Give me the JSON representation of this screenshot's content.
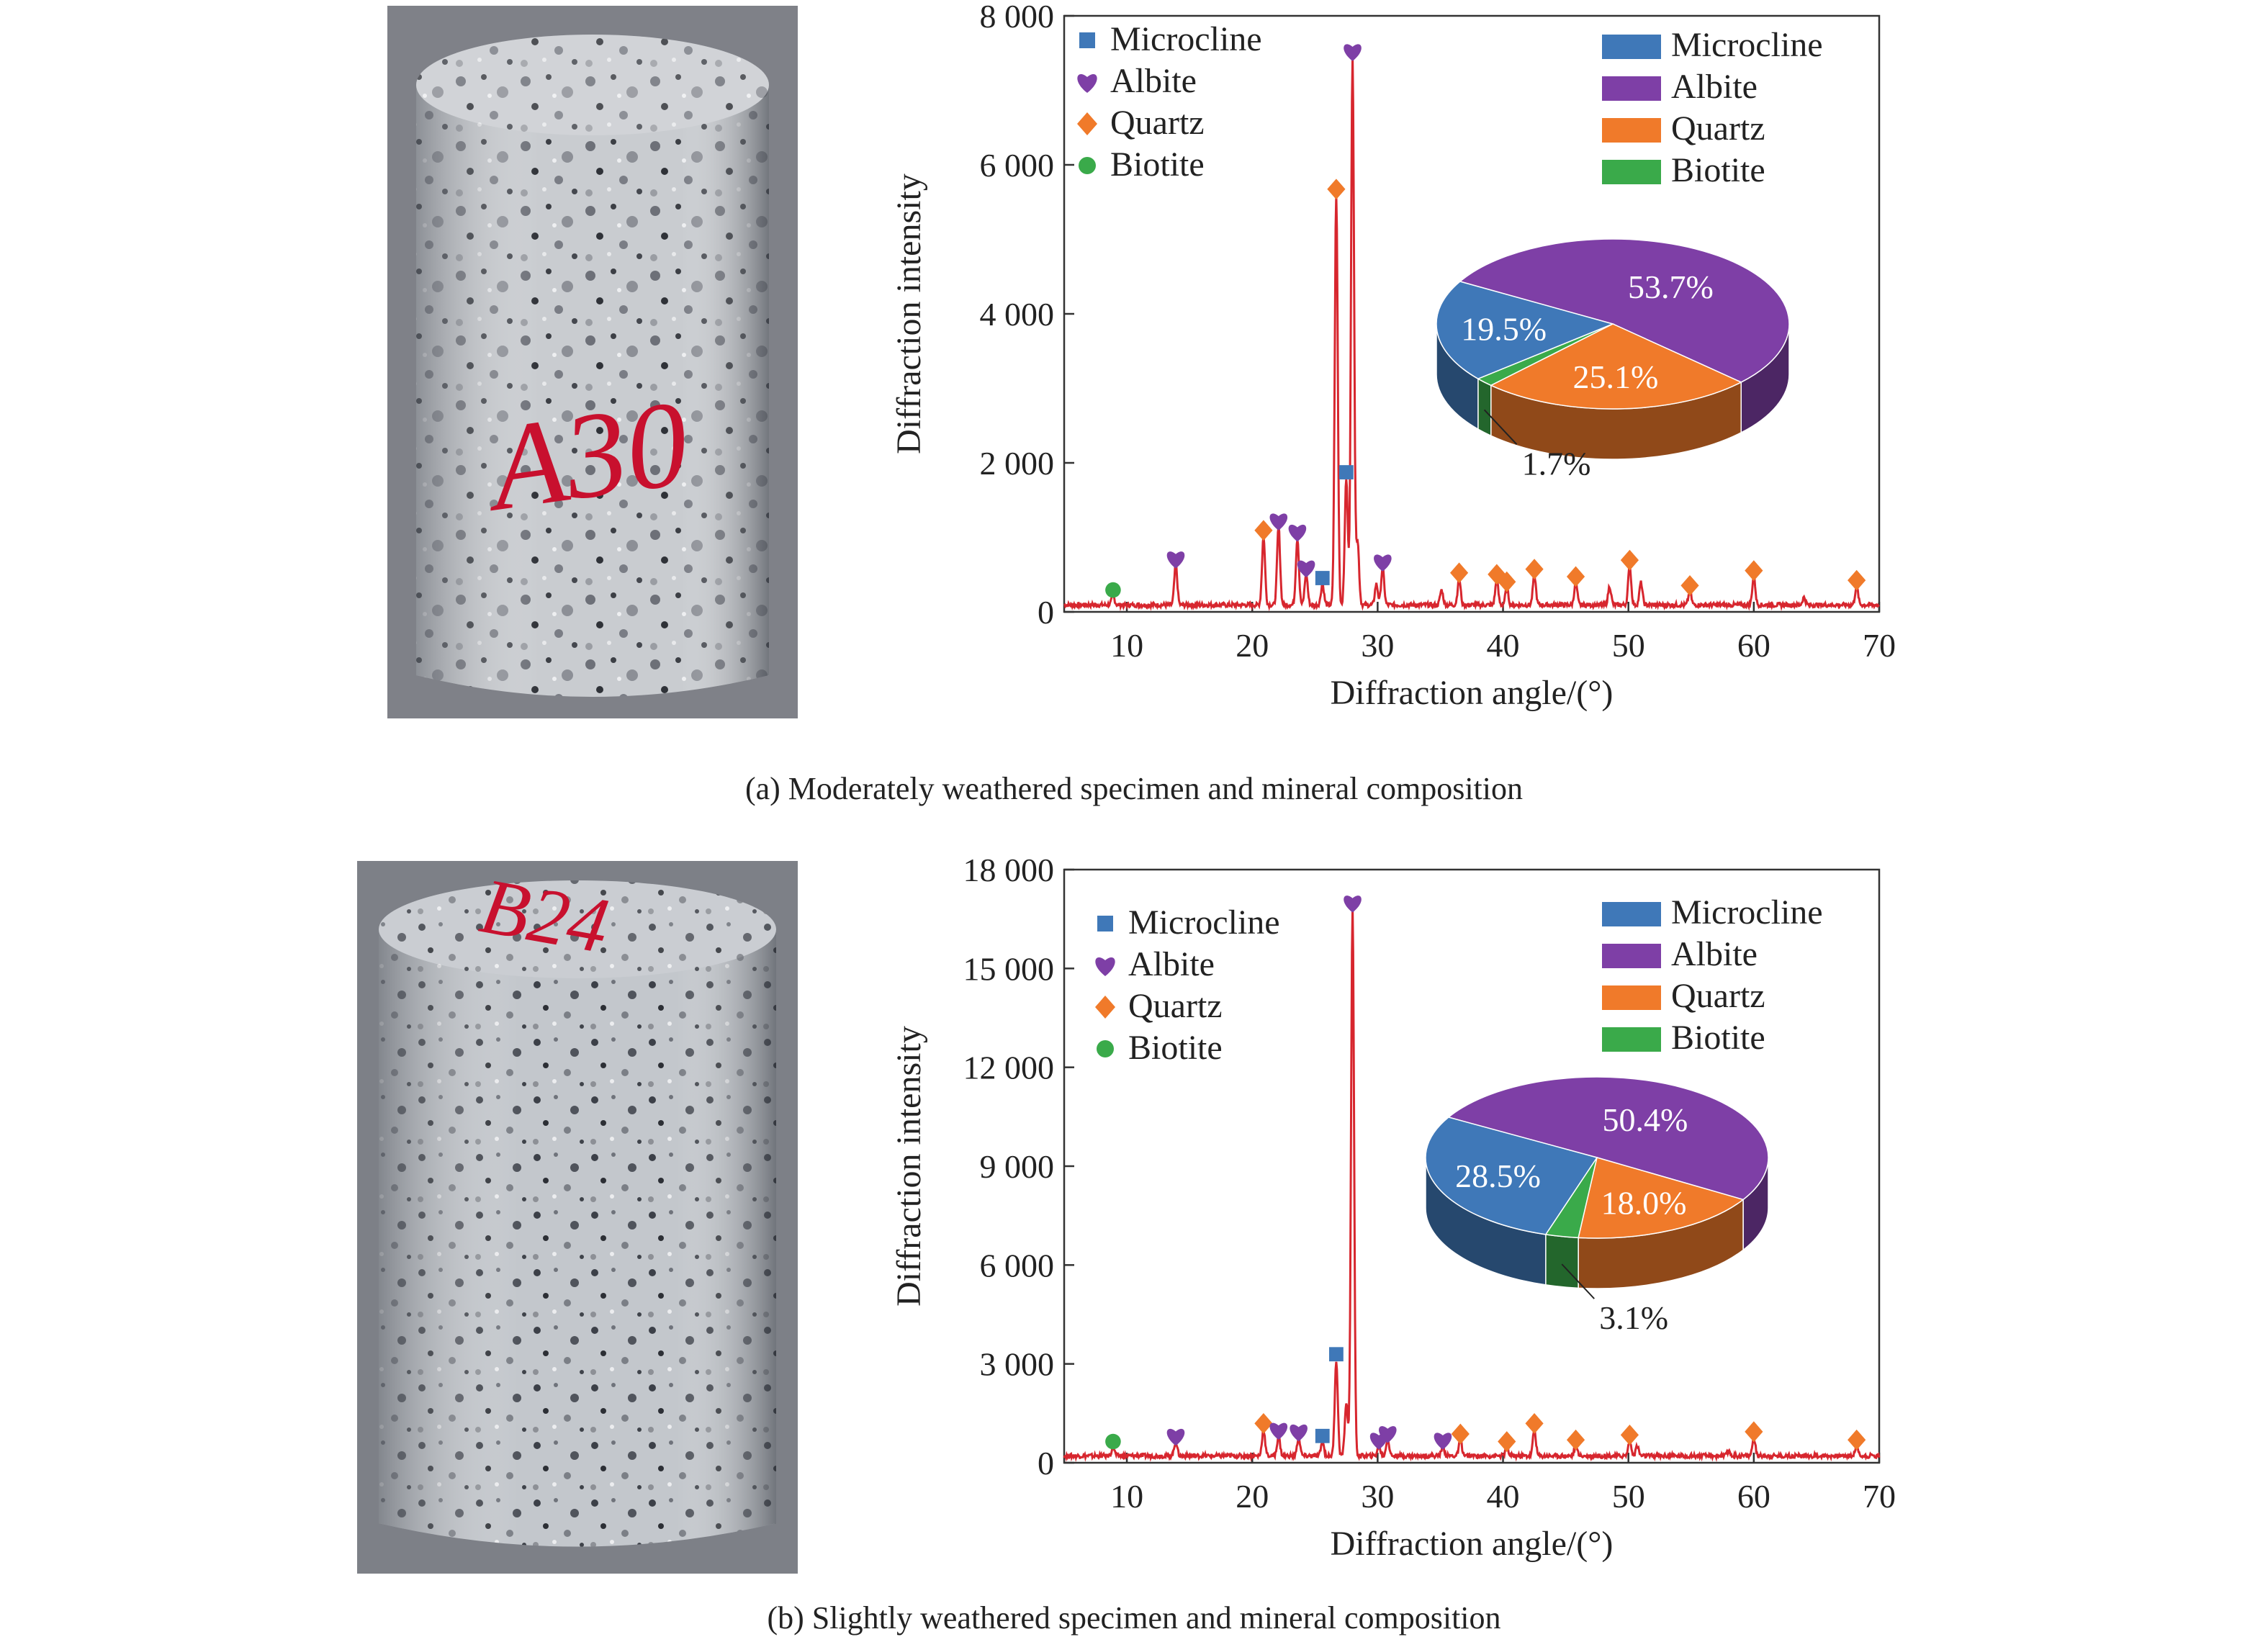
{
  "colors": {
    "microcline": "#3f78b8",
    "albite": "#7e3fa6",
    "quartz": "#f07a2a",
    "biotite": "#3aaa4a",
    "xrd_line": "#d7262e"
  },
  "panels": [
    {
      "specimen_label": "A30",
      "caption": "(a) Moderately weathered specimen and mineral composition",
      "chart_data": {
        "type": "line",
        "xlabel": "Diffraction angle/(°)",
        "ylabel": "Diffraction intensity",
        "xlim": [
          5,
          70
        ],
        "ylim": [
          0,
          8000
        ],
        "xticks": [
          10,
          20,
          30,
          40,
          50,
          60,
          70
        ],
        "yticks": [
          0,
          2000,
          4000,
          6000,
          8000
        ],
        "ytick_labels": [
          "0",
          "2 000",
          "4 000",
          "6 000",
          "8 000"
        ],
        "marker_legend": [
          "Microcline",
          "Albite",
          "Quartz",
          "Biotite"
        ],
        "peaks": [
          {
            "x": 8.9,
            "y": 120,
            "mineral": "biotite"
          },
          {
            "x": 13.9,
            "y": 540,
            "mineral": "albite"
          },
          {
            "x": 20.9,
            "y": 920,
            "mineral": "quartz"
          },
          {
            "x": 22.1,
            "y": 1050,
            "mineral": "albite"
          },
          {
            "x": 23.6,
            "y": 900,
            "mineral": "albite"
          },
          {
            "x": 24.3,
            "y": 420,
            "mineral": "albite"
          },
          {
            "x": 25.6,
            "y": 280,
            "mineral": "microcline"
          },
          {
            "x": 26.7,
            "y": 5500,
            "mineral": "quartz"
          },
          {
            "x": 27.5,
            "y": 1700,
            "mineral": "microcline"
          },
          {
            "x": 28.0,
            "y": 7350,
            "mineral": "albite"
          },
          {
            "x": 28.4,
            "y": 850,
            "mineral": null
          },
          {
            "x": 29.9,
            "y": 280,
            "mineral": null
          },
          {
            "x": 30.4,
            "y": 500,
            "mineral": "albite"
          },
          {
            "x": 35.1,
            "y": 200,
            "mineral": null
          },
          {
            "x": 36.5,
            "y": 350,
            "mineral": "quartz"
          },
          {
            "x": 39.5,
            "y": 330,
            "mineral": "quartz"
          },
          {
            "x": 40.3,
            "y": 230,
            "mineral": "quartz"
          },
          {
            "x": 42.5,
            "y": 400,
            "mineral": "quartz"
          },
          {
            "x": 45.8,
            "y": 300,
            "mineral": "quartz"
          },
          {
            "x": 48.5,
            "y": 250,
            "mineral": null
          },
          {
            "x": 50.1,
            "y": 520,
            "mineral": "quartz"
          },
          {
            "x": 51.0,
            "y": 300,
            "mineral": null
          },
          {
            "x": 54.9,
            "y": 180,
            "mineral": "quartz"
          },
          {
            "x": 60.0,
            "y": 380,
            "mineral": "quartz"
          },
          {
            "x": 64.0,
            "y": 100,
            "mineral": null
          },
          {
            "x": 68.2,
            "y": 250,
            "mineral": "quartz"
          }
        ],
        "pie": {
          "legend": [
            "Microcline",
            "Albite",
            "Quartz",
            "Biotite"
          ],
          "slices": [
            {
              "name": "Microcline",
              "value": 19.5,
              "label": "19.5%"
            },
            {
              "name": "Albite",
              "value": 53.7,
              "label": "53.7%"
            },
            {
              "name": "Quartz",
              "value": 25.1,
              "label": "25.1%"
            },
            {
              "name": "Biotite",
              "value": 1.7,
              "label": "1.7%"
            }
          ]
        }
      }
    },
    {
      "specimen_label": "B24",
      "caption": "(b) Slightly weathered specimen and mineral composition",
      "chart_data": {
        "type": "line",
        "xlabel": "Diffraction angle/(°)",
        "ylabel": "Diffraction intensity",
        "xlim": [
          5,
          70
        ],
        "ylim": [
          0,
          18000
        ],
        "xticks": [
          10,
          20,
          30,
          40,
          50,
          60,
          70
        ],
        "yticks": [
          0,
          3000,
          6000,
          9000,
          12000,
          15000,
          18000
        ],
        "ytick_labels": [
          "0",
          "3 000",
          "6 000",
          "9 000",
          "12 000",
          "15 000",
          "18 000"
        ],
        "marker_legend": [
          "Microcline",
          "Albite",
          "Quartz",
          "Biotite"
        ],
        "peaks": [
          {
            "x": 8.9,
            "y": 250,
            "mineral": "biotite"
          },
          {
            "x": 13.9,
            "y": 420,
            "mineral": "albite"
          },
          {
            "x": 20.9,
            "y": 800,
            "mineral": "quartz"
          },
          {
            "x": 22.1,
            "y": 600,
            "mineral": "albite"
          },
          {
            "x": 23.7,
            "y": 550,
            "mineral": "albite"
          },
          {
            "x": 25.6,
            "y": 420,
            "mineral": "microcline"
          },
          {
            "x": 26.7,
            "y": 2900,
            "mineral": "microcline"
          },
          {
            "x": 27.5,
            "y": 1600,
            "mineral": null
          },
          {
            "x": 28.0,
            "y": 16600,
            "mineral": "albite"
          },
          {
            "x": 30.1,
            "y": 300,
            "mineral": "albite"
          },
          {
            "x": 30.8,
            "y": 500,
            "mineral": "albite"
          },
          {
            "x": 35.2,
            "y": 300,
            "mineral": "albite"
          },
          {
            "x": 36.6,
            "y": 480,
            "mineral": "quartz"
          },
          {
            "x": 40.3,
            "y": 250,
            "mineral": "quartz"
          },
          {
            "x": 42.5,
            "y": 800,
            "mineral": "quartz"
          },
          {
            "x": 45.8,
            "y": 300,
            "mineral": "quartz"
          },
          {
            "x": 50.1,
            "y": 450,
            "mineral": "quartz"
          },
          {
            "x": 50.7,
            "y": 300,
            "mineral": null
          },
          {
            "x": 58.0,
            "y": 150,
            "mineral": null
          },
          {
            "x": 60.0,
            "y": 550,
            "mineral": "quartz"
          },
          {
            "x": 68.2,
            "y": 300,
            "mineral": "quartz"
          }
        ],
        "pie": {
          "legend": [
            "Microcline",
            "Albite",
            "Quartz",
            "Biotite"
          ],
          "slices": [
            {
              "name": "Microcline",
              "value": 28.5,
              "label": "28.5%"
            },
            {
              "name": "Albite",
              "value": 50.4,
              "label": "50.4%"
            },
            {
              "name": "Quartz",
              "value": 18.0,
              "label": "18.0%"
            },
            {
              "name": "Biotite",
              "value": 3.1,
              "label": "3.1%"
            }
          ]
        }
      }
    }
  ]
}
